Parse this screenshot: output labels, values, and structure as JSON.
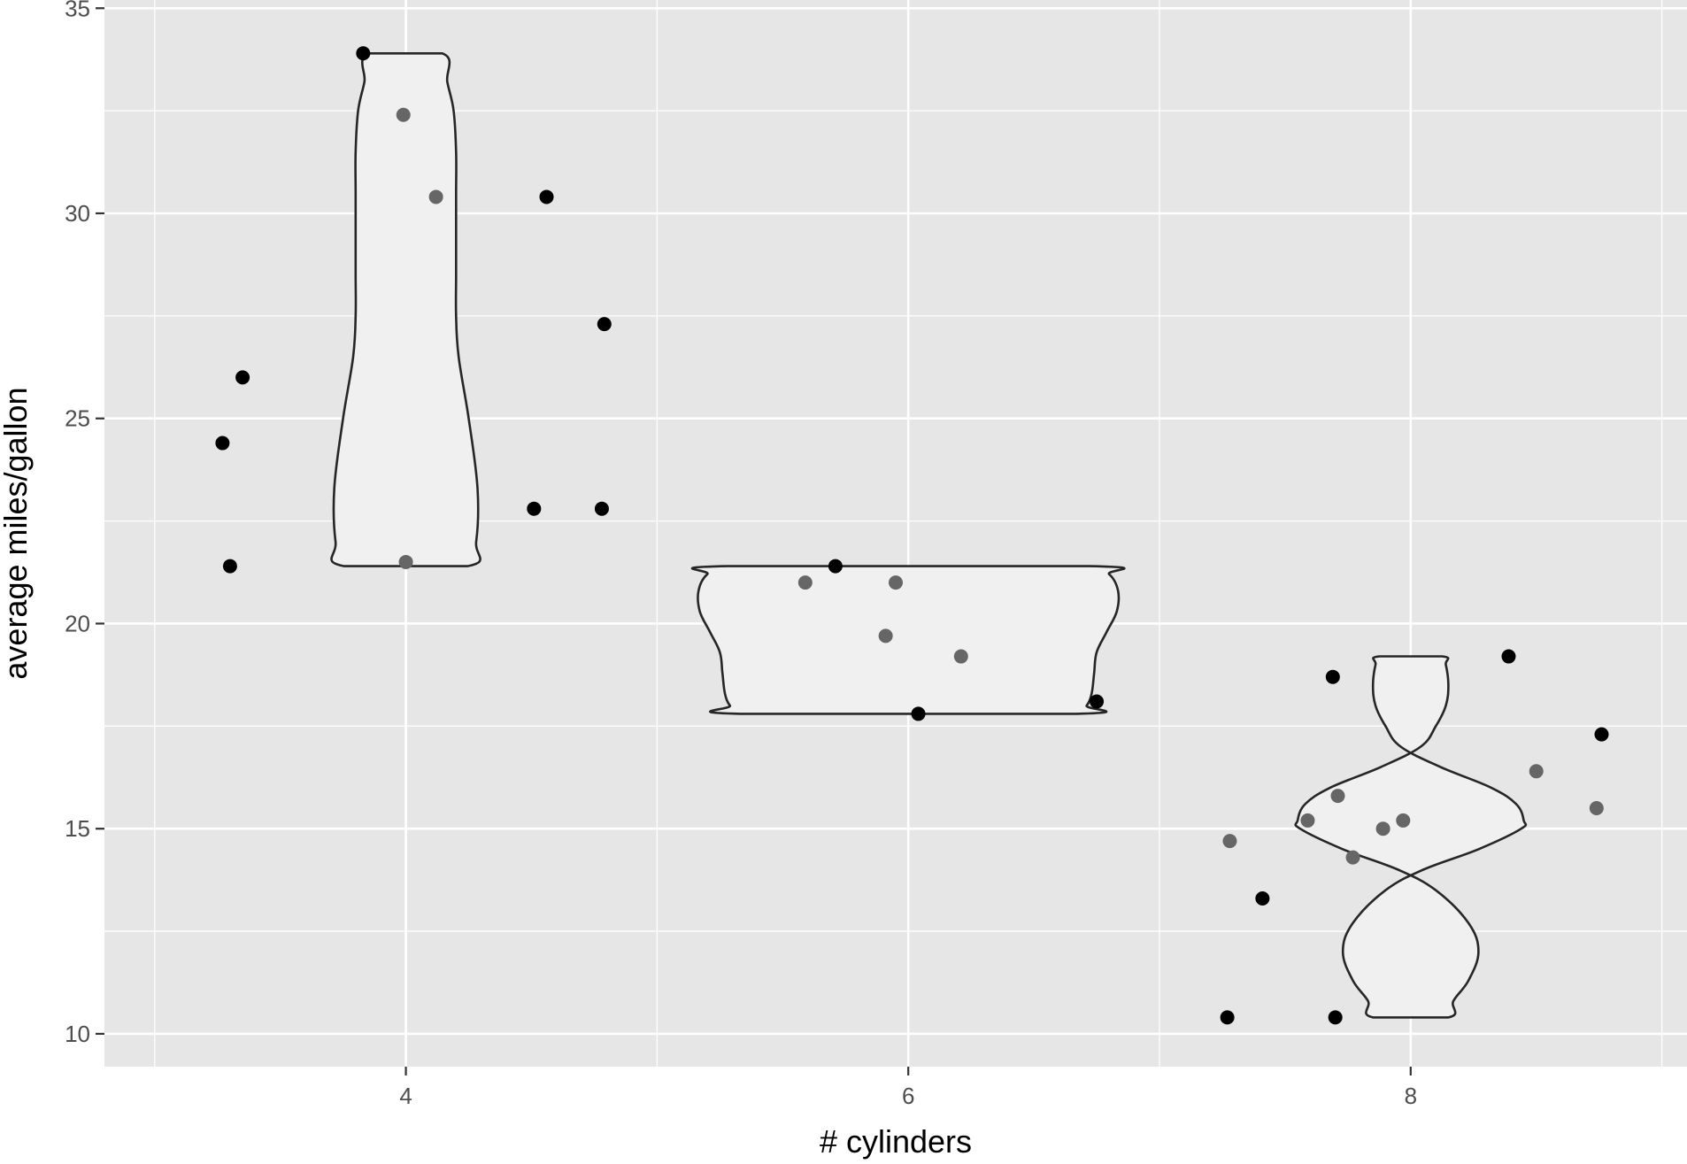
{
  "chart_data": {
    "type": "violin",
    "title": "",
    "xlabel": "# cylinders",
    "ylabel": "average miles/gallon",
    "xlim": [
      2.8,
      9.1
    ],
    "ylim": [
      9.2,
      35.2
    ],
    "x_ticks": [
      4,
      6,
      8
    ],
    "x_tick_labels": [
      "4",
      "6",
      "8"
    ],
    "x_minor_ticks": [
      3,
      5,
      7,
      9
    ],
    "y_ticks": [
      10,
      15,
      20,
      25,
      30,
      35
    ],
    "y_tick_labels": [
      "10",
      "15",
      "20",
      "25",
      "30",
      "35"
    ],
    "y_minor_ticks": [
      12.5,
      17.5,
      22.5,
      27.5,
      32.5
    ],
    "grid": true,
    "colors": {
      "panel": "#e6e6e6",
      "grid": "#ffffff",
      "violin_fill": "#f0f0f0",
      "violin_stroke": "#262626",
      "point_dark": "#000000",
      "point_gray": "#666666"
    },
    "violins": [
      {
        "group": 4,
        "profile": [
          [
            21.4,
            0.245
          ],
          [
            22.0,
            0.28
          ],
          [
            23.3,
            0.285
          ],
          [
            25.0,
            0.25
          ],
          [
            26.5,
            0.21
          ],
          [
            27.5,
            0.2
          ],
          [
            28.5,
            0.2
          ],
          [
            29.5,
            0.2
          ],
          [
            30.5,
            0.2
          ],
          [
            31.5,
            0.2
          ],
          [
            32.5,
            0.19
          ],
          [
            33.2,
            0.165
          ],
          [
            33.9,
            0.145
          ]
        ]
      },
      {
        "group": 6,
        "profile": [
          [
            17.8,
            0.67
          ],
          [
            18.0,
            0.71
          ],
          [
            18.3,
            0.73
          ],
          [
            18.8,
            0.74
          ],
          [
            19.3,
            0.75
          ],
          [
            19.8,
            0.79
          ],
          [
            20.3,
            0.83
          ],
          [
            20.8,
            0.835
          ],
          [
            21.2,
            0.8
          ],
          [
            21.4,
            0.72
          ]
        ]
      },
      {
        "group": 8,
        "profile": [
          [
            10.4,
            0.15
          ],
          [
            10.8,
            0.17
          ],
          [
            11.3,
            0.23
          ],
          [
            12.0,
            0.27
          ],
          [
            12.7,
            0.23
          ],
          [
            13.5,
            0.1
          ],
          [
            14.0,
            -0.05
          ],
          [
            14.5,
            -0.27
          ],
          [
            15.0,
            -0.44
          ],
          [
            15.2,
            -0.45
          ],
          [
            15.6,
            -0.42
          ],
          [
            16.0,
            -0.32
          ],
          [
            16.5,
            -0.12
          ],
          [
            17.0,
            0.04
          ],
          [
            17.5,
            0.1
          ],
          [
            18.0,
            0.14
          ],
          [
            18.5,
            0.15
          ],
          [
            19.0,
            0.14
          ],
          [
            19.2,
            0.125
          ]
        ]
      }
    ],
    "points": [
      {
        "x": 3.27,
        "y": 24.4,
        "tone": "dark"
      },
      {
        "x": 3.3,
        "y": 21.4,
        "tone": "dark"
      },
      {
        "x": 3.35,
        "y": 26.0,
        "tone": "dark"
      },
      {
        "x": 3.83,
        "y": 33.9,
        "tone": "dark"
      },
      {
        "x": 3.99,
        "y": 32.4,
        "tone": "gray"
      },
      {
        "x": 4.0,
        "y": 21.5,
        "tone": "gray"
      },
      {
        "x": 4.12,
        "y": 30.4,
        "tone": "gray"
      },
      {
        "x": 4.51,
        "y": 22.8,
        "tone": "dark"
      },
      {
        "x": 4.56,
        "y": 30.4,
        "tone": "dark"
      },
      {
        "x": 4.78,
        "y": 22.8,
        "tone": "dark"
      },
      {
        "x": 4.79,
        "y": 27.3,
        "tone": "dark"
      },
      {
        "x": 5.59,
        "y": 21.0,
        "tone": "gray"
      },
      {
        "x": 5.71,
        "y": 21.4,
        "tone": "dark"
      },
      {
        "x": 5.91,
        "y": 19.7,
        "tone": "gray"
      },
      {
        "x": 5.95,
        "y": 21.0,
        "tone": "gray"
      },
      {
        "x": 6.04,
        "y": 17.8,
        "tone": "dark"
      },
      {
        "x": 6.21,
        "y": 19.2,
        "tone": "gray"
      },
      {
        "x": 6.75,
        "y": 18.1,
        "tone": "dark"
      },
      {
        "x": 7.27,
        "y": 10.4,
        "tone": "dark"
      },
      {
        "x": 7.28,
        "y": 14.7,
        "tone": "gray"
      },
      {
        "x": 7.41,
        "y": 13.3,
        "tone": "dark"
      },
      {
        "x": 7.59,
        "y": 15.2,
        "tone": "gray"
      },
      {
        "x": 7.69,
        "y": 18.7,
        "tone": "dark"
      },
      {
        "x": 7.7,
        "y": 10.4,
        "tone": "dark"
      },
      {
        "x": 7.71,
        "y": 15.8,
        "tone": "gray"
      },
      {
        "x": 7.77,
        "y": 14.3,
        "tone": "gray"
      },
      {
        "x": 7.89,
        "y": 15.0,
        "tone": "gray"
      },
      {
        "x": 7.97,
        "y": 15.2,
        "tone": "gray"
      },
      {
        "x": 8.39,
        "y": 19.2,
        "tone": "dark"
      },
      {
        "x": 8.5,
        "y": 16.4,
        "tone": "gray"
      },
      {
        "x": 8.74,
        "y": 15.5,
        "tone": "gray"
      },
      {
        "x": 8.76,
        "y": 17.3,
        "tone": "dark"
      }
    ]
  }
}
